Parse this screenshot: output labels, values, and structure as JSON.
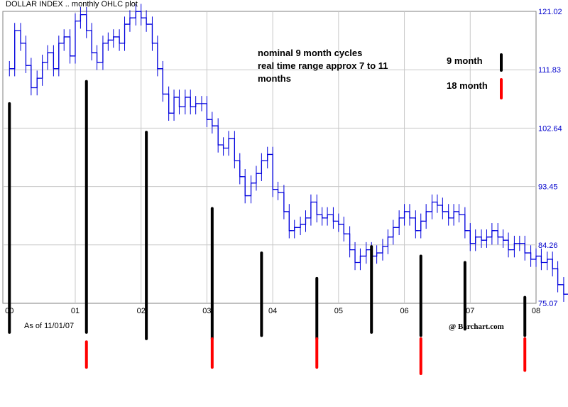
{
  "chart_data": {
    "type": "ohlc",
    "title": "DOLLAR INDEX .. monthly OHLC plot",
    "as_of": "As of 11/01/07",
    "credit": "@ Barchart.com",
    "x_tick_labels": [
      "00",
      "01",
      "02",
      "03",
      "04",
      "05",
      "06",
      "07",
      "08"
    ],
    "y_tick_labels": [
      "121.02",
      "111.83",
      "102.64",
      "93.45",
      "84.26",
      "75.07"
    ],
    "ylim": [
      75.07,
      121.02
    ],
    "xlim": [
      1999.9,
      2008.0
    ],
    "grid": true,
    "annotation_lines": [
      "nominal 9 month cycles",
      "real time range approx 7 to 11",
      "months"
    ],
    "legend": [
      {
        "label": "9 month",
        "color": "#000000"
      },
      {
        "label": "18 month",
        "color": "#ff0000"
      }
    ],
    "ohlc_close_approx": [
      {
        "t": 2000.0,
        "v": 112.0
      },
      {
        "t": 2000.08,
        "v": 118.0
      },
      {
        "t": 2000.17,
        "v": 116.0
      },
      {
        "t": 2000.25,
        "v": 112.5
      },
      {
        "t": 2000.33,
        "v": 109.0
      },
      {
        "t": 2000.42,
        "v": 110.5
      },
      {
        "t": 2000.5,
        "v": 113.0
      },
      {
        "t": 2000.58,
        "v": 114.5
      },
      {
        "t": 2000.67,
        "v": 112.0
      },
      {
        "t": 2000.75,
        "v": 116.0
      },
      {
        "t": 2000.83,
        "v": 117.0
      },
      {
        "t": 2000.92,
        "v": 114.0
      },
      {
        "t": 2001.0,
        "v": 119.5
      },
      {
        "t": 2001.08,
        "v": 120.5
      },
      {
        "t": 2001.17,
        "v": 118.0
      },
      {
        "t": 2001.25,
        "v": 114.5
      },
      {
        "t": 2001.33,
        "v": 113.0
      },
      {
        "t": 2001.42,
        "v": 116.0
      },
      {
        "t": 2001.5,
        "v": 116.5
      },
      {
        "t": 2001.58,
        "v": 117.0
      },
      {
        "t": 2001.67,
        "v": 116.0
      },
      {
        "t": 2001.75,
        "v": 119.0
      },
      {
        "t": 2001.83,
        "v": 120.0
      },
      {
        "t": 2001.92,
        "v": 121.0
      },
      {
        "t": 2002.0,
        "v": 120.0
      },
      {
        "t": 2002.08,
        "v": 119.0
      },
      {
        "t": 2002.17,
        "v": 116.0
      },
      {
        "t": 2002.25,
        "v": 112.0
      },
      {
        "t": 2002.33,
        "v": 108.0
      },
      {
        "t": 2002.42,
        "v": 105.0
      },
      {
        "t": 2002.5,
        "v": 107.5
      },
      {
        "t": 2002.58,
        "v": 106.0
      },
      {
        "t": 2002.67,
        "v": 107.5
      },
      {
        "t": 2002.75,
        "v": 106.0
      },
      {
        "t": 2002.83,
        "v": 106.5
      },
      {
        "t": 2002.92,
        "v": 106.5
      },
      {
        "t": 2003.0,
        "v": 104.0
      },
      {
        "t": 2003.08,
        "v": 103.0
      },
      {
        "t": 2003.17,
        "v": 100.0
      },
      {
        "t": 2003.25,
        "v": 99.5
      },
      {
        "t": 2003.33,
        "v": 101.0
      },
      {
        "t": 2003.42,
        "v": 97.5
      },
      {
        "t": 2003.5,
        "v": 95.0
      },
      {
        "t": 2003.58,
        "v": 92.0
      },
      {
        "t": 2003.67,
        "v": 94.0
      },
      {
        "t": 2003.75,
        "v": 95.5
      },
      {
        "t": 2003.83,
        "v": 97.5
      },
      {
        "t": 2003.92,
        "v": 98.5
      },
      {
        "t": 2004.0,
        "v": 93.0
      },
      {
        "t": 2004.08,
        "v": 92.5
      },
      {
        "t": 2004.17,
        "v": 89.5
      },
      {
        "t": 2004.25,
        "v": 86.5
      },
      {
        "t": 2004.33,
        "v": 87.0
      },
      {
        "t": 2004.42,
        "v": 87.5
      },
      {
        "t": 2004.5,
        "v": 88.5
      },
      {
        "t": 2004.58,
        "v": 91.0
      },
      {
        "t": 2004.67,
        "v": 89.0
      },
      {
        "t": 2004.75,
        "v": 88.5
      },
      {
        "t": 2004.83,
        "v": 89.0
      },
      {
        "t": 2004.92,
        "v": 88.0
      },
      {
        "t": 2005.0,
        "v": 87.5
      },
      {
        "t": 2005.08,
        "v": 86.0
      },
      {
        "t": 2005.17,
        "v": 83.5
      },
      {
        "t": 2005.25,
        "v": 81.5
      },
      {
        "t": 2005.33,
        "v": 82.5
      },
      {
        "t": 2005.42,
        "v": 83.5
      },
      {
        "t": 2005.5,
        "v": 82.5
      },
      {
        "t": 2005.58,
        "v": 83.0
      },
      {
        "t": 2005.67,
        "v": 84.0
      },
      {
        "t": 2005.75,
        "v": 85.5
      },
      {
        "t": 2005.83,
        "v": 87.0
      },
      {
        "t": 2005.92,
        "v": 88.5
      },
      {
        "t": 2006.0,
        "v": 89.5
      },
      {
        "t": 2006.08,
        "v": 88.5
      },
      {
        "t": 2006.17,
        "v": 86.5
      },
      {
        "t": 2006.25,
        "v": 88.0
      },
      {
        "t": 2006.33,
        "v": 89.5
      },
      {
        "t": 2006.42,
        "v": 91.0
      },
      {
        "t": 2006.5,
        "v": 90.5
      },
      {
        "t": 2006.58,
        "v": 89.5
      },
      {
        "t": 2006.67,
        "v": 88.5
      },
      {
        "t": 2006.75,
        "v": 89.5
      },
      {
        "t": 2006.83,
        "v": 89.0
      },
      {
        "t": 2006.92,
        "v": 86.5
      },
      {
        "t": 2007.0,
        "v": 84.5
      },
      {
        "t": 2007.08,
        "v": 85.5
      },
      {
        "t": 2007.17,
        "v": 85.0
      },
      {
        "t": 2007.25,
        "v": 85.5
      },
      {
        "t": 2007.33,
        "v": 86.5
      },
      {
        "t": 2007.42,
        "v": 85.5
      },
      {
        "t": 2007.5,
        "v": 85.0
      },
      {
        "t": 2007.58,
        "v": 83.5
      },
      {
        "t": 2007.67,
        "v": 84.5
      },
      {
        "t": 2007.75,
        "v": 84.5
      },
      {
        "t": 2007.83,
        "v": 83.0
      },
      {
        "t": 2007.92,
        "v": 82.0
      },
      {
        "t": 2008.0,
        "v": 82.5
      },
      {
        "t": 2008.08,
        "v": 81.5
      },
      {
        "t": 2008.17,
        "v": 82.0
      },
      {
        "t": 2008.25,
        "v": 80.5
      },
      {
        "t": 2008.33,
        "v": 78.0
      },
      {
        "t": 2008.42,
        "v": 76.5
      },
      {
        "t": 2008.5,
        "v": 75.8
      }
    ],
    "cycle_markers": [
      {
        "cycle": "9 month",
        "t": 2000.0,
        "from": 106.5,
        "to": 70.5
      },
      {
        "cycle": "9 month",
        "t": 2001.17,
        "from": 110.0,
        "to": 70.5
      },
      {
        "cycle": "9 month",
        "t": 2002.08,
        "from": 102.0,
        "to": 69.5
      },
      {
        "cycle": "9 month",
        "t": 2003.08,
        "from": 90.0,
        "to": 69.5
      },
      {
        "cycle": "9 month",
        "t": 2003.83,
        "from": 83.0,
        "to": 70.0
      },
      {
        "cycle": "9 month",
        "t": 2004.67,
        "from": 79.0,
        "to": 69.5
      },
      {
        "cycle": "9 month",
        "t": 2005.5,
        "from": 84.0,
        "to": 70.5
      },
      {
        "cycle": "9 month",
        "t": 2006.25,
        "from": 82.5,
        "to": 70.0
      },
      {
        "cycle": "9 month",
        "t": 2006.92,
        "from": 81.5,
        "to": 71.0
      },
      {
        "cycle": "9 month",
        "t": 2007.83,
        "from": 76.0,
        "to": 70.0
      },
      {
        "cycle": "18 month",
        "t": 2001.17,
        "from": 69.0,
        "to": 65.0
      },
      {
        "cycle": "18 month",
        "t": 2003.08,
        "from": 69.5,
        "to": 65.0
      },
      {
        "cycle": "18 month",
        "t": 2004.67,
        "from": 69.5,
        "to": 65.0
      },
      {
        "cycle": "18 month",
        "t": 2006.25,
        "from": 69.5,
        "to": 64.0
      },
      {
        "cycle": "18 month",
        "t": 2007.83,
        "from": 69.5,
        "to": 64.5
      }
    ]
  }
}
